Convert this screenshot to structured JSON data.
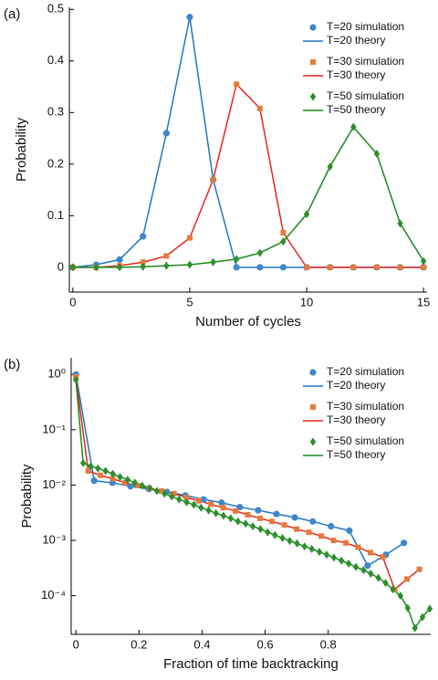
{
  "chart_data": [
    {
      "type": "line",
      "panel_label": "(a)",
      "xlabel": "Number of cycles",
      "ylabel": "Probability",
      "xlim": [
        -0.15,
        15.15
      ],
      "ylim": [
        -0.048,
        0.504
      ],
      "log_y": false,
      "xticks": [
        0,
        5,
        10,
        15
      ],
      "yticks": [
        0,
        0.1,
        0.2,
        0.3,
        0.4,
        0.5
      ],
      "series": [
        {
          "name": "T=20 simulation",
          "color": "#3f87c9",
          "marker": "circle",
          "x": [
            0,
            1,
            2,
            3,
            4,
            5,
            6,
            7,
            8,
            9,
            10,
            11,
            12,
            13,
            14,
            15
          ],
          "values": [
            0,
            0.005,
            0.015,
            0.06,
            0.26,
            0.485,
            0.17,
            0,
            0,
            0,
            0,
            0,
            0,
            0,
            0,
            0
          ]
        },
        {
          "name": "T=20 theory",
          "color": "#1f77c4",
          "marker": "none",
          "x": [
            0,
            1,
            2,
            3,
            4,
            5,
            6,
            7,
            8,
            9,
            10,
            11,
            12,
            13,
            14,
            15
          ],
          "values": [
            0,
            0.005,
            0.015,
            0.06,
            0.26,
            0.485,
            0.17,
            0,
            0,
            0,
            0,
            0,
            0,
            0,
            0,
            0
          ]
        },
        {
          "name": "T=30 simulation",
          "color": "#e57a3c",
          "marker": "square",
          "x": [
            0,
            1,
            2,
            3,
            4,
            5,
            6,
            7,
            8,
            9,
            10,
            11,
            12,
            13,
            14,
            15
          ],
          "values": [
            0,
            0,
            0.003,
            0.01,
            0.022,
            0.057,
            0.17,
            0.355,
            0.308,
            0.067,
            0,
            0,
            0,
            0,
            0,
            0
          ]
        },
        {
          "name": "T=30 theory",
          "color": "#e8261c",
          "marker": "none",
          "x": [
            0,
            1,
            2,
            3,
            4,
            5,
            6,
            7,
            8,
            9,
            10,
            11,
            12,
            13,
            14,
            15
          ],
          "values": [
            0,
            0,
            0.003,
            0.01,
            0.022,
            0.057,
            0.17,
            0.355,
            0.308,
            0.067,
            0,
            0,
            0,
            0,
            0,
            0
          ]
        },
        {
          "name": "T=50 simulation",
          "color": "#2d8f2d",
          "marker": "diamond",
          "x": [
            0,
            1,
            2,
            3,
            4,
            5,
            6,
            7,
            8,
            9,
            10,
            11,
            12,
            13,
            14,
            15
          ],
          "values": [
            0,
            0,
            0,
            0.001,
            0.003,
            0.005,
            0.01,
            0.016,
            0.028,
            0.05,
            0.103,
            0.195,
            0.272,
            0.22,
            0.085,
            0.012
          ]
        },
        {
          "name": "T=50 theory",
          "color": "#1a8a1a",
          "marker": "none",
          "x": [
            0,
            1,
            2,
            3,
            4,
            5,
            6,
            7,
            8,
            9,
            10,
            11,
            12,
            13,
            14,
            15
          ],
          "values": [
            0,
            0,
            0,
            0.001,
            0.003,
            0.005,
            0.01,
            0.016,
            0.028,
            0.05,
            0.103,
            0.195,
            0.272,
            0.22,
            0.085,
            0.012
          ]
        }
      ]
    },
    {
      "type": "line",
      "panel_label": "(b)",
      "xlabel": "Fraction of time backtracking",
      "ylabel": "Probability",
      "xlim": [
        -0.015,
        1.125
      ],
      "ylim": [
        2e-05,
        2
      ],
      "log_y": true,
      "xticks": [
        0,
        0.2,
        0.4,
        0.6,
        0.8
      ],
      "yticks": [
        {
          "value": 1,
          "label": "10⁰"
        },
        {
          "value": 0.1,
          "label": "10⁻¹"
        },
        {
          "value": 0.01,
          "label": "10⁻²"
        },
        {
          "value": 0.001,
          "label": "10⁻³"
        },
        {
          "value": 0.0001,
          "label": "10⁻⁴"
        }
      ],
      "series": [
        {
          "name": "T=20 simulation",
          "color": "#3f87c9",
          "marker": "circle",
          "x": [
            0,
            0.058,
            0.116,
            0.173,
            0.231,
            0.289,
            0.347,
            0.405,
            0.462,
            0.52,
            0.578,
            0.636,
            0.694,
            0.751,
            0.809,
            0.867,
            0.925,
            0.983,
            1.04
          ],
          "values": [
            1.0,
            0.012,
            0.011,
            0.0095,
            0.0085,
            0.0075,
            0.0065,
            0.0055,
            0.0048,
            0.004,
            0.0035,
            0.003,
            0.0026,
            0.0022,
            0.0018,
            0.0015,
            0.00035,
            0.00055,
            0.0009
          ]
        },
        {
          "name": "T=20 theory",
          "color": "#1f77c4",
          "marker": "none",
          "x": [
            0,
            0.058,
            0.116,
            0.173,
            0.231,
            0.289,
            0.347,
            0.405,
            0.462,
            0.52,
            0.578,
            0.636,
            0.694,
            0.751,
            0.809,
            0.867,
            0.925,
            0.983,
            1.04
          ],
          "values": [
            1.0,
            0.012,
            0.011,
            0.0095,
            0.0085,
            0.0075,
            0.0065,
            0.0055,
            0.0048,
            0.004,
            0.0035,
            0.003,
            0.0026,
            0.0022,
            0.0018,
            0.0015,
            0.00035,
            0.00055,
            0.0009
          ]
        },
        {
          "name": "T=30 simulation",
          "color": "#e57a3c",
          "marker": "square",
          "x": [
            0,
            0.039,
            0.078,
            0.117,
            0.156,
            0.195,
            0.233,
            0.272,
            0.311,
            0.35,
            0.389,
            0.428,
            0.467,
            0.506,
            0.545,
            0.584,
            0.622,
            0.661,
            0.7,
            0.739,
            0.778,
            0.817,
            0.856,
            0.895,
            0.934,
            0.973,
            1.011,
            1.05,
            1.089
          ],
          "values": [
            0.9,
            0.018,
            0.015,
            0.013,
            0.011,
            0.0098,
            0.0088,
            0.0078,
            0.007,
            0.006,
            0.0052,
            0.0045,
            0.0039,
            0.0034,
            0.0029,
            0.0025,
            0.0022,
            0.0019,
            0.0016,
            0.0014,
            0.0012,
            0.001,
            0.0009,
            0.00075,
            0.0006,
            0.0005,
            0.00013,
            0.0002,
            0.0003
          ]
        },
        {
          "name": "T=30 theory",
          "color": "#e8261c",
          "marker": "none",
          "x": [
            0,
            0.039,
            0.078,
            0.117,
            0.156,
            0.195,
            0.233,
            0.272,
            0.311,
            0.35,
            0.389,
            0.428,
            0.467,
            0.506,
            0.545,
            0.584,
            0.622,
            0.661,
            0.7,
            0.739,
            0.778,
            0.817,
            0.856,
            0.895,
            0.934,
            0.973,
            1.011,
            1.05,
            1.089
          ],
          "values": [
            0.9,
            0.018,
            0.015,
            0.013,
            0.011,
            0.0098,
            0.0088,
            0.0078,
            0.007,
            0.006,
            0.0052,
            0.0045,
            0.0039,
            0.0034,
            0.0029,
            0.0025,
            0.0022,
            0.0019,
            0.0016,
            0.0014,
            0.0012,
            0.001,
            0.0009,
            0.00075,
            0.0006,
            0.0005,
            0.00013,
            0.0002,
            0.0003
          ]
        },
        {
          "name": "T=50 simulation",
          "color": "#2d8f2d",
          "marker": "diamond",
          "x": [
            0,
            0.023,
            0.047,
            0.07,
            0.094,
            0.117,
            0.14,
            0.164,
            0.187,
            0.21,
            0.234,
            0.257,
            0.281,
            0.304,
            0.327,
            0.351,
            0.374,
            0.397,
            0.421,
            0.444,
            0.468,
            0.491,
            0.514,
            0.538,
            0.561,
            0.585,
            0.608,
            0.631,
            0.655,
            0.678,
            0.701,
            0.725,
            0.748,
            0.772,
            0.795,
            0.818,
            0.842,
            0.865,
            0.888,
            0.912,
            0.935,
            0.959,
            0.982,
            1.005,
            1.029,
            1.052,
            1.075,
            1.099,
            1.122
          ],
          "values": [
            0.8,
            0.025,
            0.022,
            0.02,
            0.018,
            0.016,
            0.014,
            0.0125,
            0.011,
            0.0098,
            0.0088,
            0.0078,
            0.007,
            0.0062,
            0.0055,
            0.0049,
            0.0044,
            0.0039,
            0.0035,
            0.0031,
            0.0028,
            0.0025,
            0.0022,
            0.002,
            0.0018,
            0.0016,
            0.0014,
            0.00125,
            0.0011,
            0.00098,
            0.00088,
            0.00078,
            0.0007,
            0.00062,
            0.00055,
            0.00049,
            0.00043,
            0.00038,
            0.00033,
            0.00029,
            0.00025,
            0.00021,
            0.00017,
            0.00013,
            0.0001,
            6e-05,
            2.6e-05,
            4.1e-05,
            5.8e-05
          ]
        },
        {
          "name": "T=50 theory",
          "color": "#1a8a1a",
          "marker": "none",
          "x": [
            0,
            0.023,
            0.047,
            0.07,
            0.094,
            0.117,
            0.14,
            0.164,
            0.187,
            0.21,
            0.234,
            0.257,
            0.281,
            0.304,
            0.327,
            0.351,
            0.374,
            0.397,
            0.421,
            0.444,
            0.468,
            0.491,
            0.514,
            0.538,
            0.561,
            0.585,
            0.608,
            0.631,
            0.655,
            0.678,
            0.701,
            0.725,
            0.748,
            0.772,
            0.795,
            0.818,
            0.842,
            0.865,
            0.888,
            0.912,
            0.935,
            0.959,
            0.982,
            1.005,
            1.029,
            1.052,
            1.075,
            1.099,
            1.122
          ],
          "values": [
            0.8,
            0.025,
            0.022,
            0.02,
            0.018,
            0.016,
            0.014,
            0.0125,
            0.011,
            0.0098,
            0.0088,
            0.0078,
            0.007,
            0.0062,
            0.0055,
            0.0049,
            0.0044,
            0.0039,
            0.0035,
            0.0031,
            0.0028,
            0.0025,
            0.0022,
            0.002,
            0.0018,
            0.0016,
            0.0014,
            0.00125,
            0.0011,
            0.00098,
            0.00088,
            0.00078,
            0.0007,
            0.00062,
            0.00055,
            0.00049,
            0.00043,
            0.00038,
            0.00033,
            0.00029,
            0.00025,
            0.00021,
            0.00017,
            0.00013,
            0.0001,
            6e-05,
            2.6e-05,
            4.1e-05,
            5.8e-05
          ]
        }
      ]
    }
  ]
}
